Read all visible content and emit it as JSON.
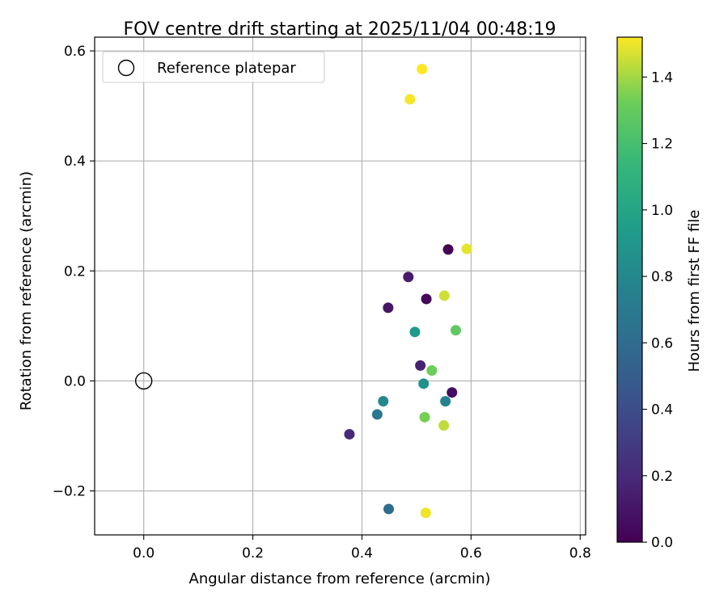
{
  "chart_data": {
    "type": "scatter",
    "title": "FOV centre drift starting at 2025/11/04 00:48:19",
    "xlabel": "Angular distance from reference (arcmin)",
    "ylabel": "Rotation from reference (arcmin)",
    "xlim": [
      -0.09,
      0.81
    ],
    "ylim": [
      -0.28,
      0.625
    ],
    "xticks": [
      0.0,
      0.2,
      0.4,
      0.6,
      0.8
    ],
    "xtick_labels": [
      "0.0",
      "0.2",
      "0.4",
      "0.6",
      "0.8"
    ],
    "yticks": [
      -0.2,
      0.0,
      0.2,
      0.4,
      0.6
    ],
    "ytick_labels": [
      "−0.2",
      "0.0",
      "0.2",
      "0.4",
      "0.6"
    ],
    "grid": true,
    "legend": {
      "position": "top-left",
      "entries": [
        "Reference platepar"
      ]
    },
    "reference_point": {
      "x": 0.0,
      "y": 0.0,
      "label": "Reference platepar"
    },
    "colorbar": {
      "label": "Hours from first FF file",
      "colormap": "viridis",
      "range": [
        0.0,
        1.52
      ],
      "ticks": [
        0.0,
        0.2,
        0.4,
        0.6,
        0.8,
        1.0,
        1.2,
        1.4
      ],
      "tick_labels": [
        "0.0",
        "0.2",
        "0.4",
        "0.6",
        "0.8",
        "1.0",
        "1.2",
        "1.4"
      ]
    },
    "points": [
      {
        "x": 0.558,
        "y": 0.239,
        "hours": 0.0
      },
      {
        "x": 0.518,
        "y": 0.149,
        "hours": 0.03
      },
      {
        "x": 0.565,
        "y": -0.021,
        "hours": 0.06
      },
      {
        "x": 0.448,
        "y": 0.133,
        "hours": 0.1
      },
      {
        "x": 0.485,
        "y": 0.189,
        "hours": 0.13
      },
      {
        "x": 0.507,
        "y": 0.028,
        "hours": 0.16
      },
      {
        "x": 0.377,
        "y": -0.097,
        "hours": 0.2
      },
      {
        "x": 0.449,
        "y": -0.233,
        "hours": 0.6
      },
      {
        "x": 0.428,
        "y": -0.061,
        "hours": 0.68
      },
      {
        "x": 0.553,
        "y": -0.037,
        "hours": 0.76
      },
      {
        "x": 0.439,
        "y": -0.037,
        "hours": 0.8
      },
      {
        "x": 0.513,
        "y": -0.005,
        "hours": 0.86
      },
      {
        "x": 0.497,
        "y": 0.089,
        "hours": 0.92
      },
      {
        "x": 0.572,
        "y": 0.092,
        "hours": 1.28
      },
      {
        "x": 0.528,
        "y": 0.019,
        "hours": 1.32
      },
      {
        "x": 0.515,
        "y": -0.066,
        "hours": 1.34
      },
      {
        "x": 0.55,
        "y": -0.081,
        "hours": 1.44
      },
      {
        "x": 0.551,
        "y": 0.155,
        "hours": 1.46
      },
      {
        "x": 0.592,
        "y": 0.24,
        "hours": 1.49
      },
      {
        "x": 0.517,
        "y": -0.24,
        "hours": 1.5
      },
      {
        "x": 0.488,
        "y": 0.512,
        "hours": 1.51
      },
      {
        "x": 0.51,
        "y": 0.567,
        "hours": 1.52
      }
    ]
  }
}
